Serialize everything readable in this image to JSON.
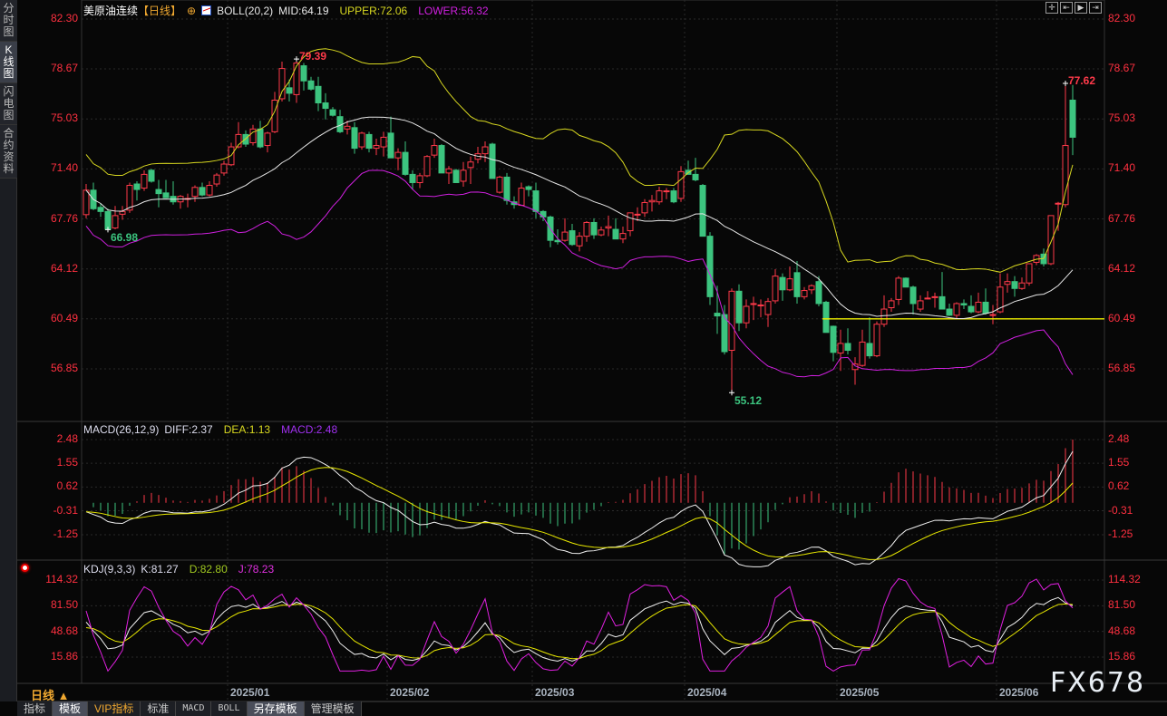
{
  "sidebar": {
    "tabs": [
      {
        "label": "分时图",
        "active": false
      },
      {
        "label": "K线图",
        "active": true
      },
      {
        "label": "闪电图",
        "active": false
      },
      {
        "label": "合约资料",
        "active": false
      }
    ]
  },
  "header": {
    "instrument": "美原油连续",
    "period": "【日线】",
    "boll": "BOLL(20,2)",
    "mid": "MID:64.19",
    "upper": "UPPER:72.06",
    "lower": "LOWER:56.32"
  },
  "macd_header": {
    "name": "MACD(26,12,9)",
    "diff": "DIFF:2.37",
    "dea": "DEA:1.13",
    "macd": "MACD:2.48"
  },
  "kdj_header": {
    "name": "KDJ(9,3,3)",
    "k": "K:81.27",
    "d": "D:82.80",
    "j": "J:78.23"
  },
  "colors": {
    "up": "#ff3a4a",
    "down": "#3cc47f",
    "mid": "#e8e8e8",
    "upper": "#d8d820",
    "lower": "#d020e0",
    "axis": "#ff3040",
    "accent": "#f0a830"
  },
  "top_icons": [
    "crosshair-icon",
    "zoom-in-range-icon",
    "play-forward-icon",
    "jump-to-end-icon"
  ],
  "chart_data": {
    "type": "candlestick",
    "price_ticks": [
      "82.30",
      "78.67",
      "75.03",
      "71.40",
      "67.76",
      "64.12",
      "60.49",
      "56.85"
    ],
    "price_range": [
      56.85,
      82.3
    ],
    "support_line": 60.49,
    "annotations": [
      {
        "text": "79.39",
        "bar": 29,
        "kind": "high"
      },
      {
        "text": "66.98",
        "bar": 3,
        "kind": "low"
      },
      {
        "text": "55.12",
        "bar": 89,
        "kind": "low"
      },
      {
        "text": "77.62",
        "bar": 135,
        "kind": "high"
      }
    ],
    "x_labels": [
      {
        "label": "2025/01",
        "bar": 20
      },
      {
        "label": "2025/02",
        "bar": 42
      },
      {
        "label": "2025/03",
        "bar": 62
      },
      {
        "label": "2025/04",
        "bar": 83
      },
      {
        "label": "2025/05",
        "bar": 104
      },
      {
        "label": "2025/06",
        "bar": 126
      }
    ],
    "macd_ticks": [
      "2.48",
      "1.55",
      "0.62",
      "-0.31",
      "-1.25"
    ],
    "macd_range": [
      -1.25,
      2.48
    ],
    "kdj_ticks": [
      "114.32",
      "81.50",
      "48.68",
      "15.86"
    ],
    "kdj_range": [
      15.86,
      114.32
    ],
    "ohlc": [
      [
        68.07,
        70.3,
        67.8,
        69.85
      ],
      [
        69.85,
        70.4,
        68.4,
        68.5
      ],
      [
        68.6,
        68.9,
        67.9,
        68.3
      ],
      [
        68.3,
        68.5,
        66.98,
        67.0
      ],
      [
        67.1,
        68.7,
        67.0,
        68.0
      ],
      [
        68.1,
        68.7,
        67.7,
        68.3
      ],
      [
        68.4,
        70.4,
        68.2,
        70.2
      ],
      [
        70.3,
        70.5,
        69.1,
        69.9
      ],
      [
        70.0,
        71.3,
        69.8,
        71.0
      ],
      [
        71.3,
        71.4,
        70.4,
        70.5
      ],
      [
        69.9,
        70.6,
        68.6,
        69.6
      ],
      [
        69.65,
        70.6,
        69.3,
        69.3
      ],
      [
        69.4,
        70.5,
        68.8,
        69.0
      ],
      [
        69.0,
        69.5,
        68.5,
        69.4
      ],
      [
        69.2,
        69.6,
        68.6,
        69.25
      ],
      [
        69.4,
        70.2,
        69.0,
        70.05
      ],
      [
        70.05,
        70.4,
        69.4,
        69.5
      ],
      [
        69.5,
        70.5,
        69.4,
        70.2
      ],
      [
        70.3,
        71.1,
        70.1,
        70.95
      ],
      [
        71.1,
        72.0,
        70.9,
        71.75
      ],
      [
        71.7,
        73.3,
        71.6,
        73.0
      ],
      [
        73.0,
        74.8,
        72.9,
        73.9
      ],
      [
        73.9,
        74.2,
        73.0,
        73.2
      ],
      [
        73.3,
        74.6,
        73.1,
        74.3
      ],
      [
        74.3,
        74.9,
        72.9,
        73.0
      ],
      [
        73.1,
        74.1,
        72.6,
        74.0
      ],
      [
        74.1,
        77.0,
        74.0,
        76.4
      ],
      [
        76.5,
        79.2,
        76.3,
        78.7
      ],
      [
        77.3,
        77.9,
        76.3,
        76.9
      ],
      [
        76.8,
        79.39,
        76.2,
        79.1
      ],
      [
        78.9,
        79.1,
        77.1,
        77.8
      ],
      [
        77.8,
        78.1,
        77.1,
        77.2
      ],
      [
        77.4,
        78.1,
        75.6,
        76.2
      ],
      [
        76.2,
        76.9,
        75.0,
        75.8
      ],
      [
        75.7,
        75.9,
        75.2,
        75.3
      ],
      [
        75.2,
        75.7,
        74.0,
        74.1
      ],
      [
        74.3,
        74.9,
        73.9,
        74.5
      ],
      [
        74.4,
        74.8,
        72.5,
        72.9
      ],
      [
        73.0,
        74.1,
        72.8,
        74.0
      ],
      [
        73.9,
        74.1,
        72.6,
        72.9
      ],
      [
        72.9,
        73.6,
        72.4,
        73.1
      ],
      [
        73.0,
        74.1,
        72.3,
        73.7
      ],
      [
        74.0,
        75.2,
        72.3,
        72.2
      ],
      [
        72.2,
        72.9,
        71.3,
        72.6
      ],
      [
        72.6,
        73.4,
        70.9,
        71.0
      ],
      [
        71.0,
        71.3,
        69.9,
        70.4
      ],
      [
        70.4,
        71.1,
        70.0,
        70.9
      ],
      [
        70.9,
        72.4,
        70.8,
        72.3
      ],
      [
        72.4,
        73.6,
        72.2,
        73.1
      ],
      [
        73.1,
        73.2,
        71.1,
        71.1
      ],
      [
        71.1,
        71.6,
        70.3,
        71.4
      ],
      [
        71.3,
        71.4,
        70.4,
        70.4
      ],
      [
        70.5,
        71.9,
        70.1,
        71.3
      ],
      [
        71.5,
        72.3,
        70.3,
        71.9
      ],
      [
        72.1,
        73.0,
        71.8,
        72.5
      ],
      [
        72.5,
        73.4,
        71.9,
        73.0
      ],
      [
        73.2,
        73.3,
        70.7,
        70.7
      ],
      [
        69.7,
        70.9,
        69.6,
        70.8
      ],
      [
        70.8,
        71.1,
        68.8,
        69.1
      ],
      [
        69.0,
        69.4,
        68.5,
        68.8
      ],
      [
        68.75,
        70.4,
        68.7,
        70.0
      ],
      [
        70.1,
        70.2,
        69.4,
        69.9
      ],
      [
        69.8,
        70.4,
        67.8,
        68.3
      ],
      [
        68.3,
        68.4,
        67.6,
        67.9
      ],
      [
        67.9,
        68.0,
        65.7,
        66.2
      ],
      [
        66.2,
        67.0,
        65.9,
        66.1
      ],
      [
        66.2,
        67.8,
        66.1,
        66.8
      ],
      [
        66.9,
        67.4,
        65.8,
        65.9
      ],
      [
        65.8,
        66.8,
        65.4,
        66.5
      ],
      [
        66.5,
        67.6,
        66.1,
        67.5
      ],
      [
        67.5,
        67.8,
        66.3,
        66.6
      ],
      [
        66.6,
        67.2,
        66.5,
        66.95
      ],
      [
        67.1,
        68.0,
        66.5,
        67.2
      ],
      [
        67.0,
        67.8,
        66.3,
        66.3
      ],
      [
        66.3,
        67.2,
        66.0,
        66.7
      ],
      [
        66.9,
        68.2,
        66.5,
        68.2
      ],
      [
        68.1,
        68.6,
        67.6,
        68.1
      ],
      [
        68.2,
        69.2,
        67.9,
        68.95
      ],
      [
        69.0,
        69.5,
        68.3,
        69.1
      ],
      [
        69.0,
        70.1,
        68.8,
        69.8
      ],
      [
        69.8,
        70.0,
        69.2,
        69.8
      ],
      [
        69.8,
        70.0,
        68.9,
        69.0
      ],
      [
        69.25,
        71.6,
        69.0,
        71.2
      ],
      [
        71.3,
        72.0,
        71.0,
        71.0
      ],
      [
        71.0,
        72.2,
        70.5,
        70.6
      ],
      [
        70.2,
        70.3,
        66.5,
        66.5
      ],
      [
        66.5,
        66.8,
        61.5,
        62.1
      ],
      [
        60.9,
        62.9,
        59.4,
        60.7
      ],
      [
        60.8,
        61.5,
        57.9,
        58.1
      ],
      [
        58.2,
        62.7,
        55.12,
        62.5
      ],
      [
        62.5,
        63.0,
        59.6,
        60.2
      ],
      [
        60.2,
        61.9,
        59.8,
        61.4
      ],
      [
        61.6,
        62.1,
        60.4,
        61.6
      ],
      [
        61.5,
        61.9,
        60.6,
        61.5
      ],
      [
        60.8,
        62.0,
        59.9,
        61.75
      ],
      [
        61.8,
        64.1,
        61.6,
        63.6
      ],
      [
        63.5,
        63.8,
        61.8,
        62.6
      ],
      [
        62.6,
        64.3,
        62.5,
        63.4
      ],
      [
        63.85,
        64.7,
        61.6,
        62.1
      ],
      [
        62.1,
        62.8,
        61.9,
        62.55
      ],
      [
        62.6,
        63.0,
        62.3,
        62.9
      ],
      [
        63.2,
        63.6,
        61.4,
        61.6
      ],
      [
        61.7,
        61.8,
        59.5,
        59.5
      ],
      [
        59.95,
        60.0,
        57.4,
        58.05
      ],
      [
        58.0,
        59.7,
        56.7,
        58.7
      ],
      [
        58.7,
        59.8,
        57.9,
        58.2
      ],
      [
        56.8,
        57.7,
        55.7,
        57.2
      ],
      [
        57.1,
        59.7,
        57.0,
        58.8
      ],
      [
        58.7,
        60.6,
        57.6,
        57.8
      ],
      [
        57.8,
        60.3,
        57.7,
        60.1
      ],
      [
        60.1,
        62.2,
        59.9,
        61.2
      ],
      [
        61.3,
        62.0,
        61.0,
        61.8
      ],
      [
        61.9,
        63.6,
        61.5,
        63.45
      ],
      [
        63.45,
        63.5,
        62.8,
        62.8
      ],
      [
        62.8,
        62.9,
        60.8,
        61.6
      ],
      [
        61.2,
        62.2,
        61.0,
        61.8
      ],
      [
        62.0,
        62.5,
        61.9,
        62.0
      ],
      [
        62.1,
        62.4,
        61.3,
        62.1
      ],
      [
        62.1,
        63.9,
        61.2,
        61.2
      ],
      [
        61.2,
        61.6,
        60.7,
        60.75
      ],
      [
        60.75,
        61.7,
        60.5,
        61.6
      ],
      [
        61.6,
        61.9,
        61.2,
        61.5
      ],
      [
        61.4,
        62.2,
        60.9,
        61.0
      ],
      [
        61.0,
        62.4,
        60.9,
        61.7
      ],
      [
        61.7,
        62.7,
        60.8,
        60.9
      ],
      [
        60.8,
        61.5,
        60.1,
        60.8
      ],
      [
        61.0,
        63.8,
        60.9,
        62.8
      ],
      [
        63.0,
        63.8,
        62.4,
        63.2
      ],
      [
        63.2,
        63.6,
        62.1,
        62.7
      ],
      [
        62.7,
        63.5,
        62.6,
        63.1
      ],
      [
        63.1,
        64.5,
        62.9,
        64.5
      ],
      [
        64.6,
        65.2,
        64.4,
        65.1
      ],
      [
        65.2,
        65.6,
        64.3,
        64.5
      ],
      [
        64.5,
        68.0,
        64.4,
        68.0
      ],
      [
        68.9,
        69.0,
        66.9,
        68.9
      ],
      [
        68.8,
        77.62,
        68.6,
        73.1
      ],
      [
        76.4,
        77.5,
        72.4,
        73.7
      ]
    ]
  },
  "footer": {
    "period_label": "日线 ▲",
    "tabs": [
      {
        "label": "指标",
        "style": ""
      },
      {
        "label": "模板",
        "style": "active"
      },
      {
        "label": "VIP指标",
        "style": "vip"
      },
      {
        "label": "标准",
        "style": ""
      },
      {
        "label": "MACD",
        "style": "mono"
      },
      {
        "label": "BOLL",
        "style": "mono"
      },
      {
        "label": "另存模板",
        "style": "active"
      },
      {
        "label": "管理模板",
        "style": ""
      }
    ]
  },
  "watermark": "FX678"
}
